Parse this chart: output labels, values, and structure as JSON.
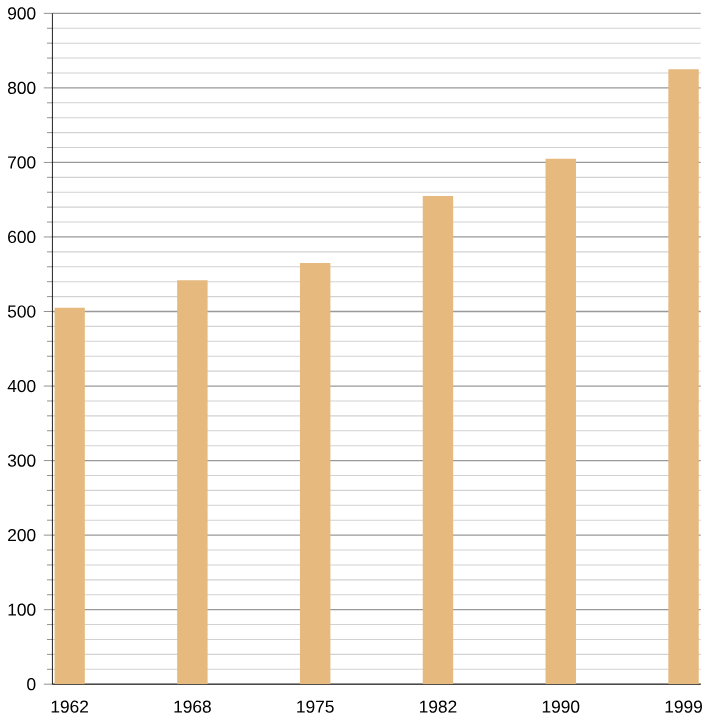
{
  "chart_data": {
    "type": "bar",
    "categories": [
      "1962",
      "1968",
      "1975",
      "1982",
      "1990",
      "1999"
    ],
    "values": [
      505,
      542,
      565,
      655,
      705,
      825
    ],
    "color": "#e6b97f",
    "ylim": [
      0,
      900
    ],
    "yticks": [
      0,
      100,
      200,
      300,
      400,
      500,
      600,
      700,
      800,
      900
    ],
    "grid": "y"
  }
}
